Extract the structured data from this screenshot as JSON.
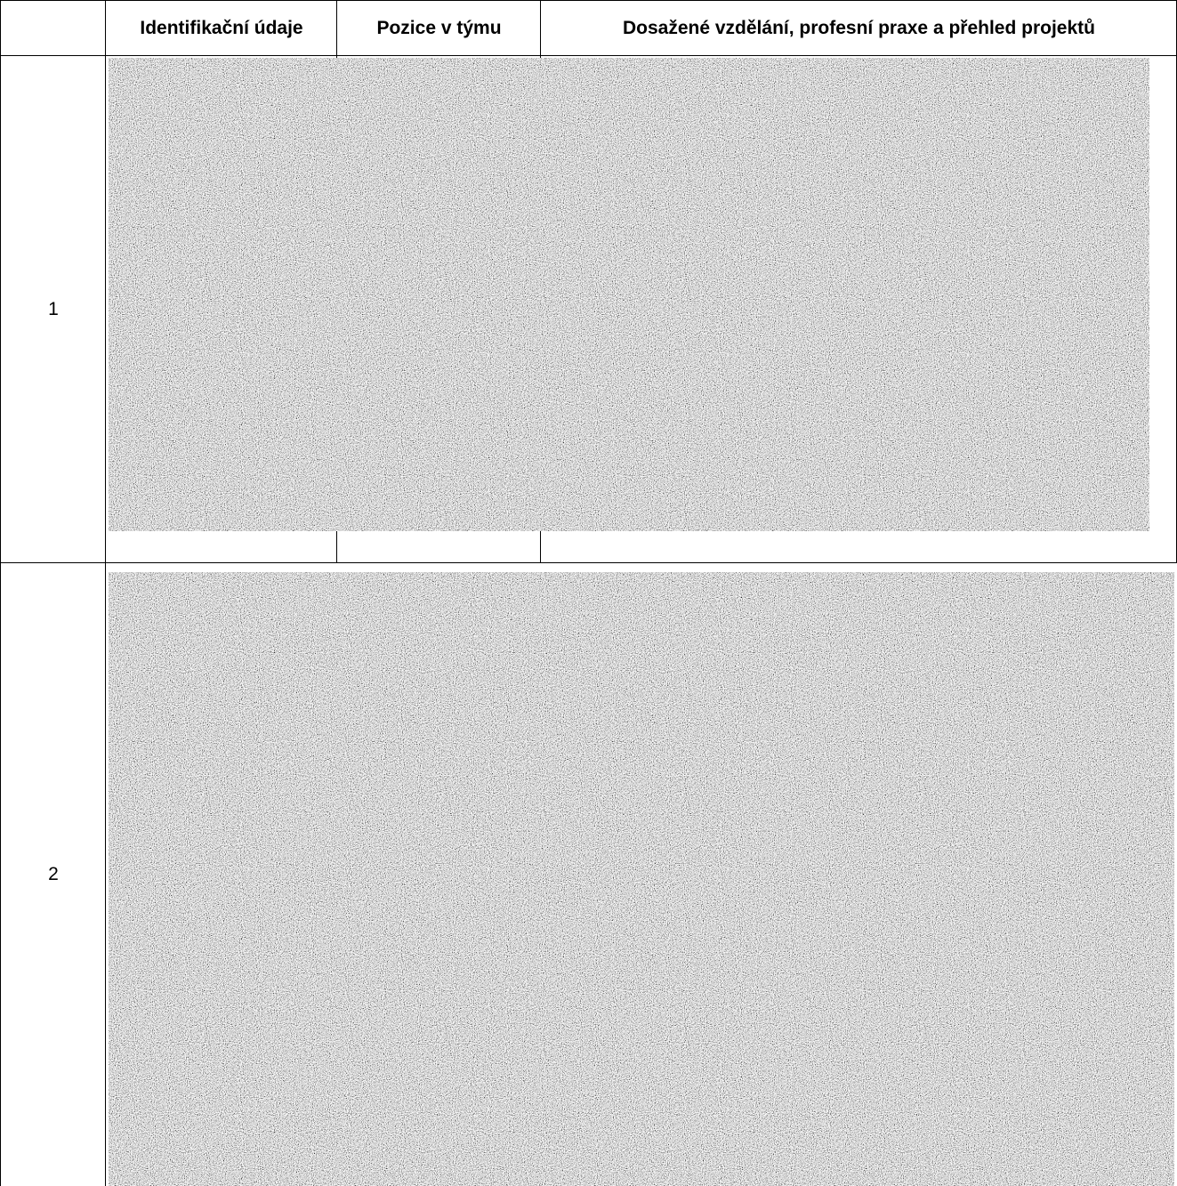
{
  "table": {
    "headers": [
      "Identifikační údaje",
      "Pozice v týmu",
      "Dosažené vzdělání, profesní praxe a přehled projektů"
    ],
    "rows": [
      {
        "number": 1
      },
      {
        "number": 2
      }
    ]
  }
}
